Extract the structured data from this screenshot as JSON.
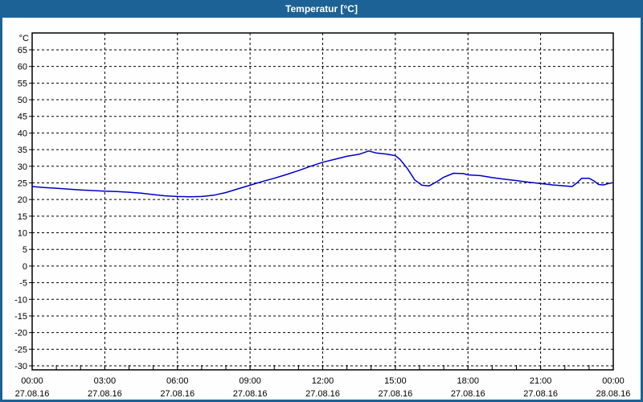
{
  "window": {
    "title": "Temperatur [°C]"
  },
  "colors": {
    "titlebar_bg": "#1d6296",
    "titlebar_text": "#ffffff",
    "window_border": "#1d6296",
    "content_bg": "#fdfefd",
    "plot_border": "#000000",
    "grid": "#000000",
    "line": "#0000cc",
    "label_text": "#000000"
  },
  "chart_data": {
    "type": "line",
    "title": "Temperatur [°C]",
    "ylabel": "°C",
    "ylim": [
      -30,
      70
    ],
    "y_tick_start": 65,
    "y_tick_end": -30,
    "y_tick_step": 5,
    "x_hours_range": [
      0,
      24
    ],
    "x_minor_tick_every_hours": 1,
    "grid_style": "dashed",
    "legend": "none",
    "x_major_ticks": [
      {
        "hour": 0,
        "time": "00:00",
        "date": "27.08.16"
      },
      {
        "hour": 3,
        "time": "03:00",
        "date": "27.08.16"
      },
      {
        "hour": 6,
        "time": "06:00",
        "date": "27.08.16"
      },
      {
        "hour": 9,
        "time": "09:00",
        "date": "27.08.16"
      },
      {
        "hour": 12,
        "time": "12:00",
        "date": "27.08.16"
      },
      {
        "hour": 15,
        "time": "15:00",
        "date": "27.08.16"
      },
      {
        "hour": 18,
        "time": "18:00",
        "date": "27.08.16"
      },
      {
        "hour": 21,
        "time": "21:00",
        "date": "27.08.16"
      },
      {
        "hour": 24,
        "time": "00:00",
        "date": "28.08.16"
      }
    ],
    "series": [
      {
        "name": "Temperatur",
        "color": "#0000cc",
        "points_hour_degc": [
          [
            0.0,
            23.9
          ],
          [
            0.5,
            23.6
          ],
          [
            1.0,
            23.4
          ],
          [
            1.5,
            23.1
          ],
          [
            2.0,
            22.9
          ],
          [
            2.5,
            22.7
          ],
          [
            3.0,
            22.5
          ],
          [
            3.5,
            22.4
          ],
          [
            4.0,
            22.2
          ],
          [
            4.5,
            21.9
          ],
          [
            5.0,
            21.5
          ],
          [
            5.5,
            21.1
          ],
          [
            6.0,
            20.9
          ],
          [
            6.5,
            20.8
          ],
          [
            7.0,
            20.9
          ],
          [
            7.5,
            21.3
          ],
          [
            8.0,
            22.1
          ],
          [
            8.5,
            23.2
          ],
          [
            9.0,
            24.3
          ],
          [
            9.5,
            25.4
          ],
          [
            10.0,
            26.4
          ],
          [
            10.5,
            27.5
          ],
          [
            11.0,
            28.7
          ],
          [
            11.5,
            30.0
          ],
          [
            12.0,
            31.2
          ],
          [
            12.5,
            32.1
          ],
          [
            13.0,
            33.0
          ],
          [
            13.5,
            33.6
          ],
          [
            13.9,
            34.6
          ],
          [
            14.2,
            34.0
          ],
          [
            14.6,
            33.7
          ],
          [
            15.0,
            33.2
          ],
          [
            15.2,
            32.0
          ],
          [
            15.5,
            29.3
          ],
          [
            15.8,
            25.9
          ],
          [
            16.1,
            24.3
          ],
          [
            16.4,
            24.1
          ],
          [
            16.7,
            25.3
          ],
          [
            17.0,
            26.7
          ],
          [
            17.4,
            27.9
          ],
          [
            17.8,
            27.8
          ],
          [
            18.0,
            27.4
          ],
          [
            18.5,
            27.2
          ],
          [
            19.0,
            26.6
          ],
          [
            19.5,
            26.1
          ],
          [
            20.0,
            25.7
          ],
          [
            20.5,
            25.2
          ],
          [
            21.0,
            24.8
          ],
          [
            21.5,
            24.4
          ],
          [
            22.0,
            24.1
          ],
          [
            22.3,
            23.9
          ],
          [
            22.5,
            25.0
          ],
          [
            22.7,
            26.4
          ],
          [
            23.0,
            26.4
          ],
          [
            23.2,
            25.6
          ],
          [
            23.4,
            24.5
          ],
          [
            23.6,
            24.4
          ],
          [
            23.8,
            24.8
          ],
          [
            24.0,
            25.1
          ]
        ]
      }
    ]
  }
}
